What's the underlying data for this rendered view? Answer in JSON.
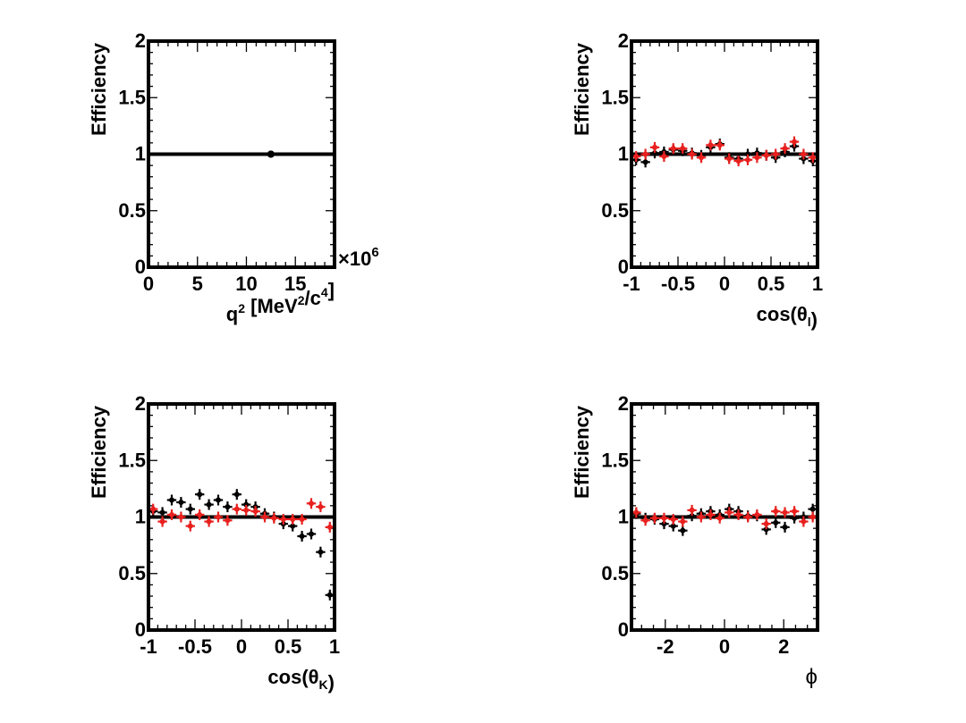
{
  "chart_data": [
    {
      "type": "scatter",
      "ylabel": "Efficiency",
      "xlabel_parts": [
        [
          "q",
          ""
        ],
        [
          "2",
          "sup"
        ],
        [
          " [MeV",
          ""
        ],
        [
          "2",
          "sup"
        ],
        [
          "/c",
          ""
        ],
        [
          "4",
          "sup"
        ],
        [
          "]",
          ""
        ]
      ],
      "xlim": [
        0,
        19
      ],
      "ylim": [
        0,
        2
      ],
      "xticks": [
        "0",
        "5",
        "10",
        "15"
      ],
      "xtick_values": [
        0,
        5,
        10,
        15
      ],
      "x_exponent": "×10",
      "x_exponent_power": "6",
      "yticks": [
        "0",
        "0.5",
        "1",
        "1.5",
        "2"
      ],
      "ref_line": 1,
      "series": [
        {
          "color": "#e8201e",
          "x": [
            12.5
          ],
          "y": [
            1.0
          ]
        },
        {
          "color": "#000000",
          "x": [
            12.5
          ],
          "y": [
            1.0
          ]
        }
      ]
    },
    {
      "type": "scatter",
      "ylabel": "Efficiency",
      "xlabel_parts": [
        [
          "cos(θ",
          ""
        ],
        [
          "l",
          "sub"
        ],
        [
          ")",
          ""
        ]
      ],
      "xlim": [
        -1,
        1
      ],
      "ylim": [
        0,
        2
      ],
      "xticks": [
        "-1",
        "-0.5",
        "0",
        "0.5",
        "1"
      ],
      "xtick_values": [
        -1,
        -0.5,
        0,
        0.5,
        1
      ],
      "yticks": [
        "0",
        "0.5",
        "1",
        "1.5",
        "2"
      ],
      "ref_line": 1,
      "series": [
        {
          "color": "#000000",
          "x": [
            -0.95,
            -0.85,
            -0.75,
            -0.65,
            -0.55,
            -0.45,
            -0.35,
            -0.25,
            -0.15,
            -0.05,
            0.05,
            0.15,
            0.25,
            0.35,
            0.45,
            0.55,
            0.65,
            0.75,
            0.85,
            0.95
          ],
          "y": [
            0.95,
            0.93,
            1.01,
            1.02,
            1.04,
            1.03,
            1.01,
            0.99,
            1.06,
            1.09,
            0.97,
            0.96,
            1.0,
            1.01,
            0.99,
            0.97,
            1.02,
            1.07,
            0.96,
            0.94
          ]
        },
        {
          "color": "#e8201e",
          "x": [
            -0.95,
            -0.85,
            -0.75,
            -0.65,
            -0.55,
            -0.45,
            -0.35,
            -0.25,
            -0.15,
            -0.05,
            0.05,
            0.15,
            0.25,
            0.35,
            0.45,
            0.55,
            0.65,
            0.75,
            0.85,
            0.95
          ],
          "y": [
            0.98,
            1.0,
            1.06,
            0.98,
            1.05,
            1.05,
            1.0,
            0.97,
            1.08,
            1.08,
            0.96,
            0.94,
            0.95,
            0.97,
            0.99,
            1.0,
            1.05,
            1.11,
            1.0,
            0.97
          ]
        }
      ]
    },
    {
      "type": "scatter",
      "ylabel": "Efficiency",
      "xlabel_parts": [
        [
          "cos(θ",
          ""
        ],
        [
          "K",
          "sub"
        ],
        [
          ")",
          ""
        ]
      ],
      "xlim": [
        -1,
        1
      ],
      "ylim": [
        0,
        2
      ],
      "xticks": [
        "-1",
        "-0.5",
        "0",
        "0.5",
        "1"
      ],
      "xtick_values": [
        -1,
        -0.5,
        0,
        0.5,
        1
      ],
      "yticks": [
        "0",
        "0.5",
        "1",
        "1.5",
        "2"
      ],
      "ref_line": 1,
      "series": [
        {
          "color": "#000000",
          "x": [
            -0.95,
            -0.85,
            -0.75,
            -0.65,
            -0.55,
            -0.45,
            -0.35,
            -0.25,
            -0.15,
            -0.05,
            0.05,
            0.15,
            0.25,
            0.35,
            0.45,
            0.55,
            0.65,
            0.75,
            0.85,
            0.95
          ],
          "y": [
            1.05,
            1.04,
            1.15,
            1.13,
            1.07,
            1.2,
            1.11,
            1.15,
            1.09,
            1.2,
            1.11,
            1.09,
            1.03,
            1.0,
            0.94,
            0.92,
            0.83,
            0.85,
            0.69,
            0.31
          ]
        },
        {
          "color": "#e8201e",
          "x": [
            -0.95,
            -0.85,
            -0.75,
            -0.65,
            -0.55,
            -0.45,
            -0.35,
            -0.25,
            -0.15,
            -0.05,
            0.05,
            0.15,
            0.25,
            0.35,
            0.45,
            0.55,
            0.65,
            0.75,
            0.85,
            0.95
          ],
          "y": [
            1.07,
            0.96,
            1.02,
            1.0,
            0.92,
            1.02,
            0.96,
            1.0,
            0.97,
            1.07,
            1.06,
            1.05,
            1.0,
            0.99,
            0.98,
            0.98,
            0.98,
            1.12,
            1.09,
            0.91
          ]
        }
      ]
    },
    {
      "type": "scatter",
      "ylabel": "Efficiency",
      "xlabel_parts": [
        [
          "ϕ",
          ""
        ]
      ],
      "xlim": [
        -3.1416,
        3.1416
      ],
      "ylim": [
        0,
        2
      ],
      "xticks": [
        "-2",
        "0",
        "2"
      ],
      "xtick_values": [
        -2,
        0,
        2
      ],
      "yticks": [
        "0",
        "0.5",
        "1",
        "1.5",
        "2"
      ],
      "ref_line": 1,
      "series": [
        {
          "color": "#000000",
          "x": [
            -2.98,
            -2.67,
            -2.36,
            -2.04,
            -1.73,
            -1.41,
            -1.1,
            -0.79,
            -0.47,
            -0.16,
            0.16,
            0.47,
            0.79,
            1.1,
            1.41,
            1.73,
            2.04,
            2.36,
            2.67,
            2.98
          ],
          "y": [
            1.03,
            0.99,
            0.98,
            0.94,
            0.92,
            0.88,
            1.01,
            1.03,
            1.05,
            1.02,
            1.07,
            1.05,
            1.01,
            1.01,
            0.89,
            0.95,
            0.91,
            0.99,
            1.0,
            1.07
          ]
        },
        {
          "color": "#e8201e",
          "x": [
            -2.98,
            -2.67,
            -2.36,
            -2.04,
            -1.73,
            -1.41,
            -1.1,
            -0.79,
            -0.47,
            -0.16,
            0.16,
            0.47,
            0.79,
            1.1,
            1.41,
            1.73,
            2.04,
            2.36,
            2.67,
            2.98
          ],
          "y": [
            1.04,
            0.97,
            0.99,
            0.99,
            0.98,
            0.96,
            1.06,
            1.0,
            1.02,
            0.99,
            1.04,
            1.02,
            1.0,
            1.02,
            0.94,
            1.05,
            1.04,
            1.05,
            0.96,
            1.0
          ]
        }
      ]
    }
  ]
}
